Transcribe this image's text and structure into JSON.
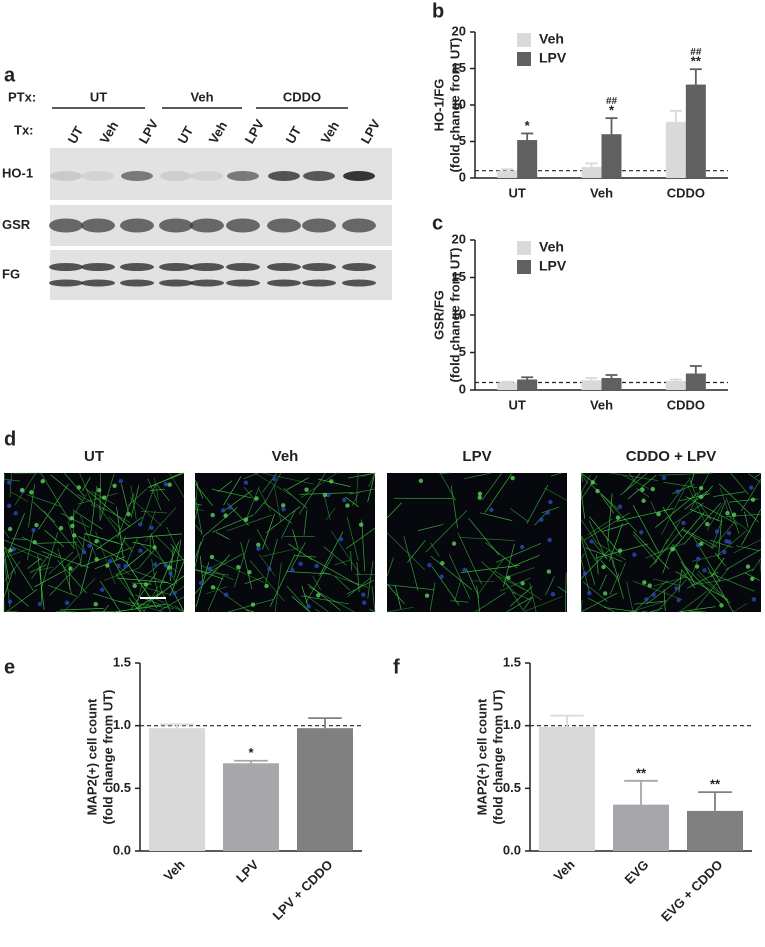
{
  "blot": {
    "panel_label": "a",
    "ptx_label": "PTx:",
    "tx_label": "Tx:",
    "groups": [
      "UT",
      "Veh",
      "CDDO"
    ],
    "lanes": [
      "UT",
      "Veh",
      "LPV",
      "UT",
      "Veh",
      "LPV",
      "UT",
      "Veh",
      "LPV"
    ],
    "rows": [
      "HO-1",
      "GSR",
      "FG"
    ]
  },
  "images": {
    "panel_label": "d",
    "titles": [
      "UT",
      "Veh",
      "LPV",
      "CDDO + LPV"
    ]
  },
  "chart_data": [
    {
      "type": "bar",
      "panel_label": "b",
      "ylabel": [
        "HO-1/FG",
        "(fold change from UT)"
      ],
      "categories": [
        "UT",
        "Veh",
        "CDDO"
      ],
      "series": [
        {
          "name": "Veh",
          "color": "#d9d9d9",
          "values": [
            1.0,
            1.5,
            7.7
          ],
          "errors": [
            0.2,
            0.5,
            1.5
          ],
          "annotations": [
            null,
            null,
            null
          ]
        },
        {
          "name": "LPV",
          "color": "#606060",
          "values": [
            5.2,
            6.0,
            12.8
          ],
          "errors": [
            0.9,
            2.2,
            2.1
          ],
          "annotations": [
            [
              "*"
            ],
            [
              "##",
              "*"
            ],
            [
              "##",
              "**"
            ]
          ]
        }
      ],
      "ylim": [
        0,
        20
      ],
      "yticks": [
        0,
        5,
        10,
        15,
        20
      ],
      "reference_line": 1,
      "legend": "upper left"
    },
    {
      "type": "bar",
      "panel_label": "c",
      "ylabel": [
        "GSR/FG",
        "(fold change from UT)"
      ],
      "categories": [
        "UT",
        "Veh",
        "CDDO"
      ],
      "series": [
        {
          "name": "Veh",
          "color": "#d9d9d9",
          "values": [
            1.0,
            1.3,
            1.2
          ],
          "errors": [
            0.1,
            0.3,
            0.2
          ]
        },
        {
          "name": "LPV",
          "color": "#606060",
          "values": [
            1.4,
            1.6,
            2.2
          ],
          "errors": [
            0.3,
            0.4,
            1.0
          ]
        }
      ],
      "ylim": [
        0,
        20
      ],
      "yticks": [
        0,
        5,
        10,
        15,
        20
      ],
      "reference_line": 1,
      "legend": "upper left"
    },
    {
      "type": "bar",
      "panel_label": "e",
      "ylabel": [
        "MAP2(+) cell count",
        "(fold change from UT)"
      ],
      "categories": [
        "Veh",
        "LPV",
        "LPV + CDDO"
      ],
      "values": [
        0.98,
        0.7,
        0.98
      ],
      "errors": [
        0.03,
        0.02,
        0.08
      ],
      "colors": [
        "#d9d9d9",
        "#a6a6ab",
        "#808080"
      ],
      "annotations": [
        null,
        [
          "*"
        ],
        null
      ],
      "ylim": [
        0,
        1.5
      ],
      "yticks": [
        {
          "value": 0,
          "label": "0.0"
        },
        0.5,
        {
          "value": 1,
          "label": "1.0"
        },
        {
          "value": 1.5,
          "label": "1.5"
        }
      ],
      "reference_line": 1
    },
    {
      "type": "bar",
      "panel_label": "f",
      "ylabel": [
        "MAP2(+) cell count",
        "(fold change from UT)"
      ],
      "categories": [
        "Veh",
        "EVG",
        "EVG + CDDO"
      ],
      "values": [
        0.99,
        0.37,
        0.32
      ],
      "errors": [
        0.09,
        0.19,
        0.15
      ],
      "colors": [
        "#d9d9d9",
        "#a6a6ab",
        "#808080"
      ],
      "annotations": [
        null,
        [
          "**"
        ],
        [
          "**"
        ]
      ],
      "ylim": [
        0,
        1.5
      ],
      "yticks": [
        {
          "value": 0,
          "label": "0.0"
        },
        0.5,
        {
          "value": 1,
          "label": "1.0"
        },
        {
          "value": 1.5,
          "label": "1.5"
        }
      ],
      "reference_line": 1
    }
  ]
}
